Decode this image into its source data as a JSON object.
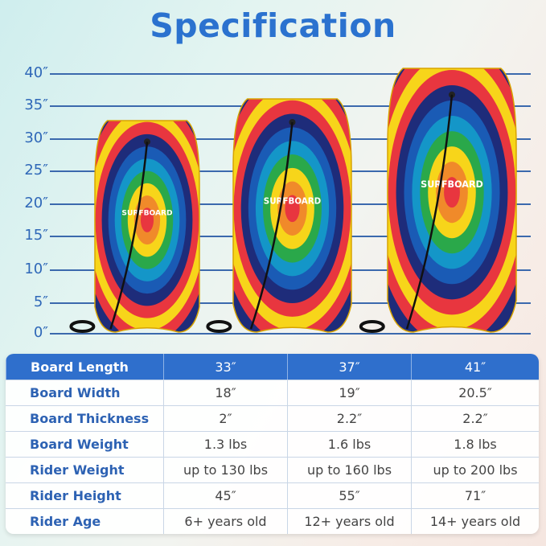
{
  "title": "Specification",
  "scale_ticks": [
    "40″",
    "35″",
    "30″",
    "25″",
    "20″",
    "15″",
    "10″",
    "5″",
    "0″"
  ],
  "board_logo_text": "SURFBOARD",
  "table": {
    "header": {
      "label": "Board Length",
      "values": [
        "33″",
        "37″",
        "41″"
      ]
    },
    "rows": [
      {
        "label": "Board Width",
        "values": [
          "18″",
          "19″",
          "20.5″"
        ]
      },
      {
        "label": "Board Thickness",
        "values": [
          "2″",
          "2.2″",
          "2.2″"
        ]
      },
      {
        "label": "Board Weight",
        "values": [
          "1.3 lbs",
          "1.6 lbs",
          "1.8 lbs"
        ]
      },
      {
        "label": "Rider Weight",
        "values": [
          "up to 130 lbs",
          "up to 160 lbs",
          "up to 200 lbs"
        ]
      },
      {
        "label": "Rider Height",
        "values": [
          "45″",
          "55″",
          "71″"
        ]
      },
      {
        "label": "Rider Age",
        "values": [
          "6+ years old",
          "12+ years old",
          "14+ years old"
        ]
      }
    ]
  },
  "colors": {
    "accent": "#2f6fcc",
    "title": "#2b72cf",
    "grid": "#3b69ad"
  }
}
